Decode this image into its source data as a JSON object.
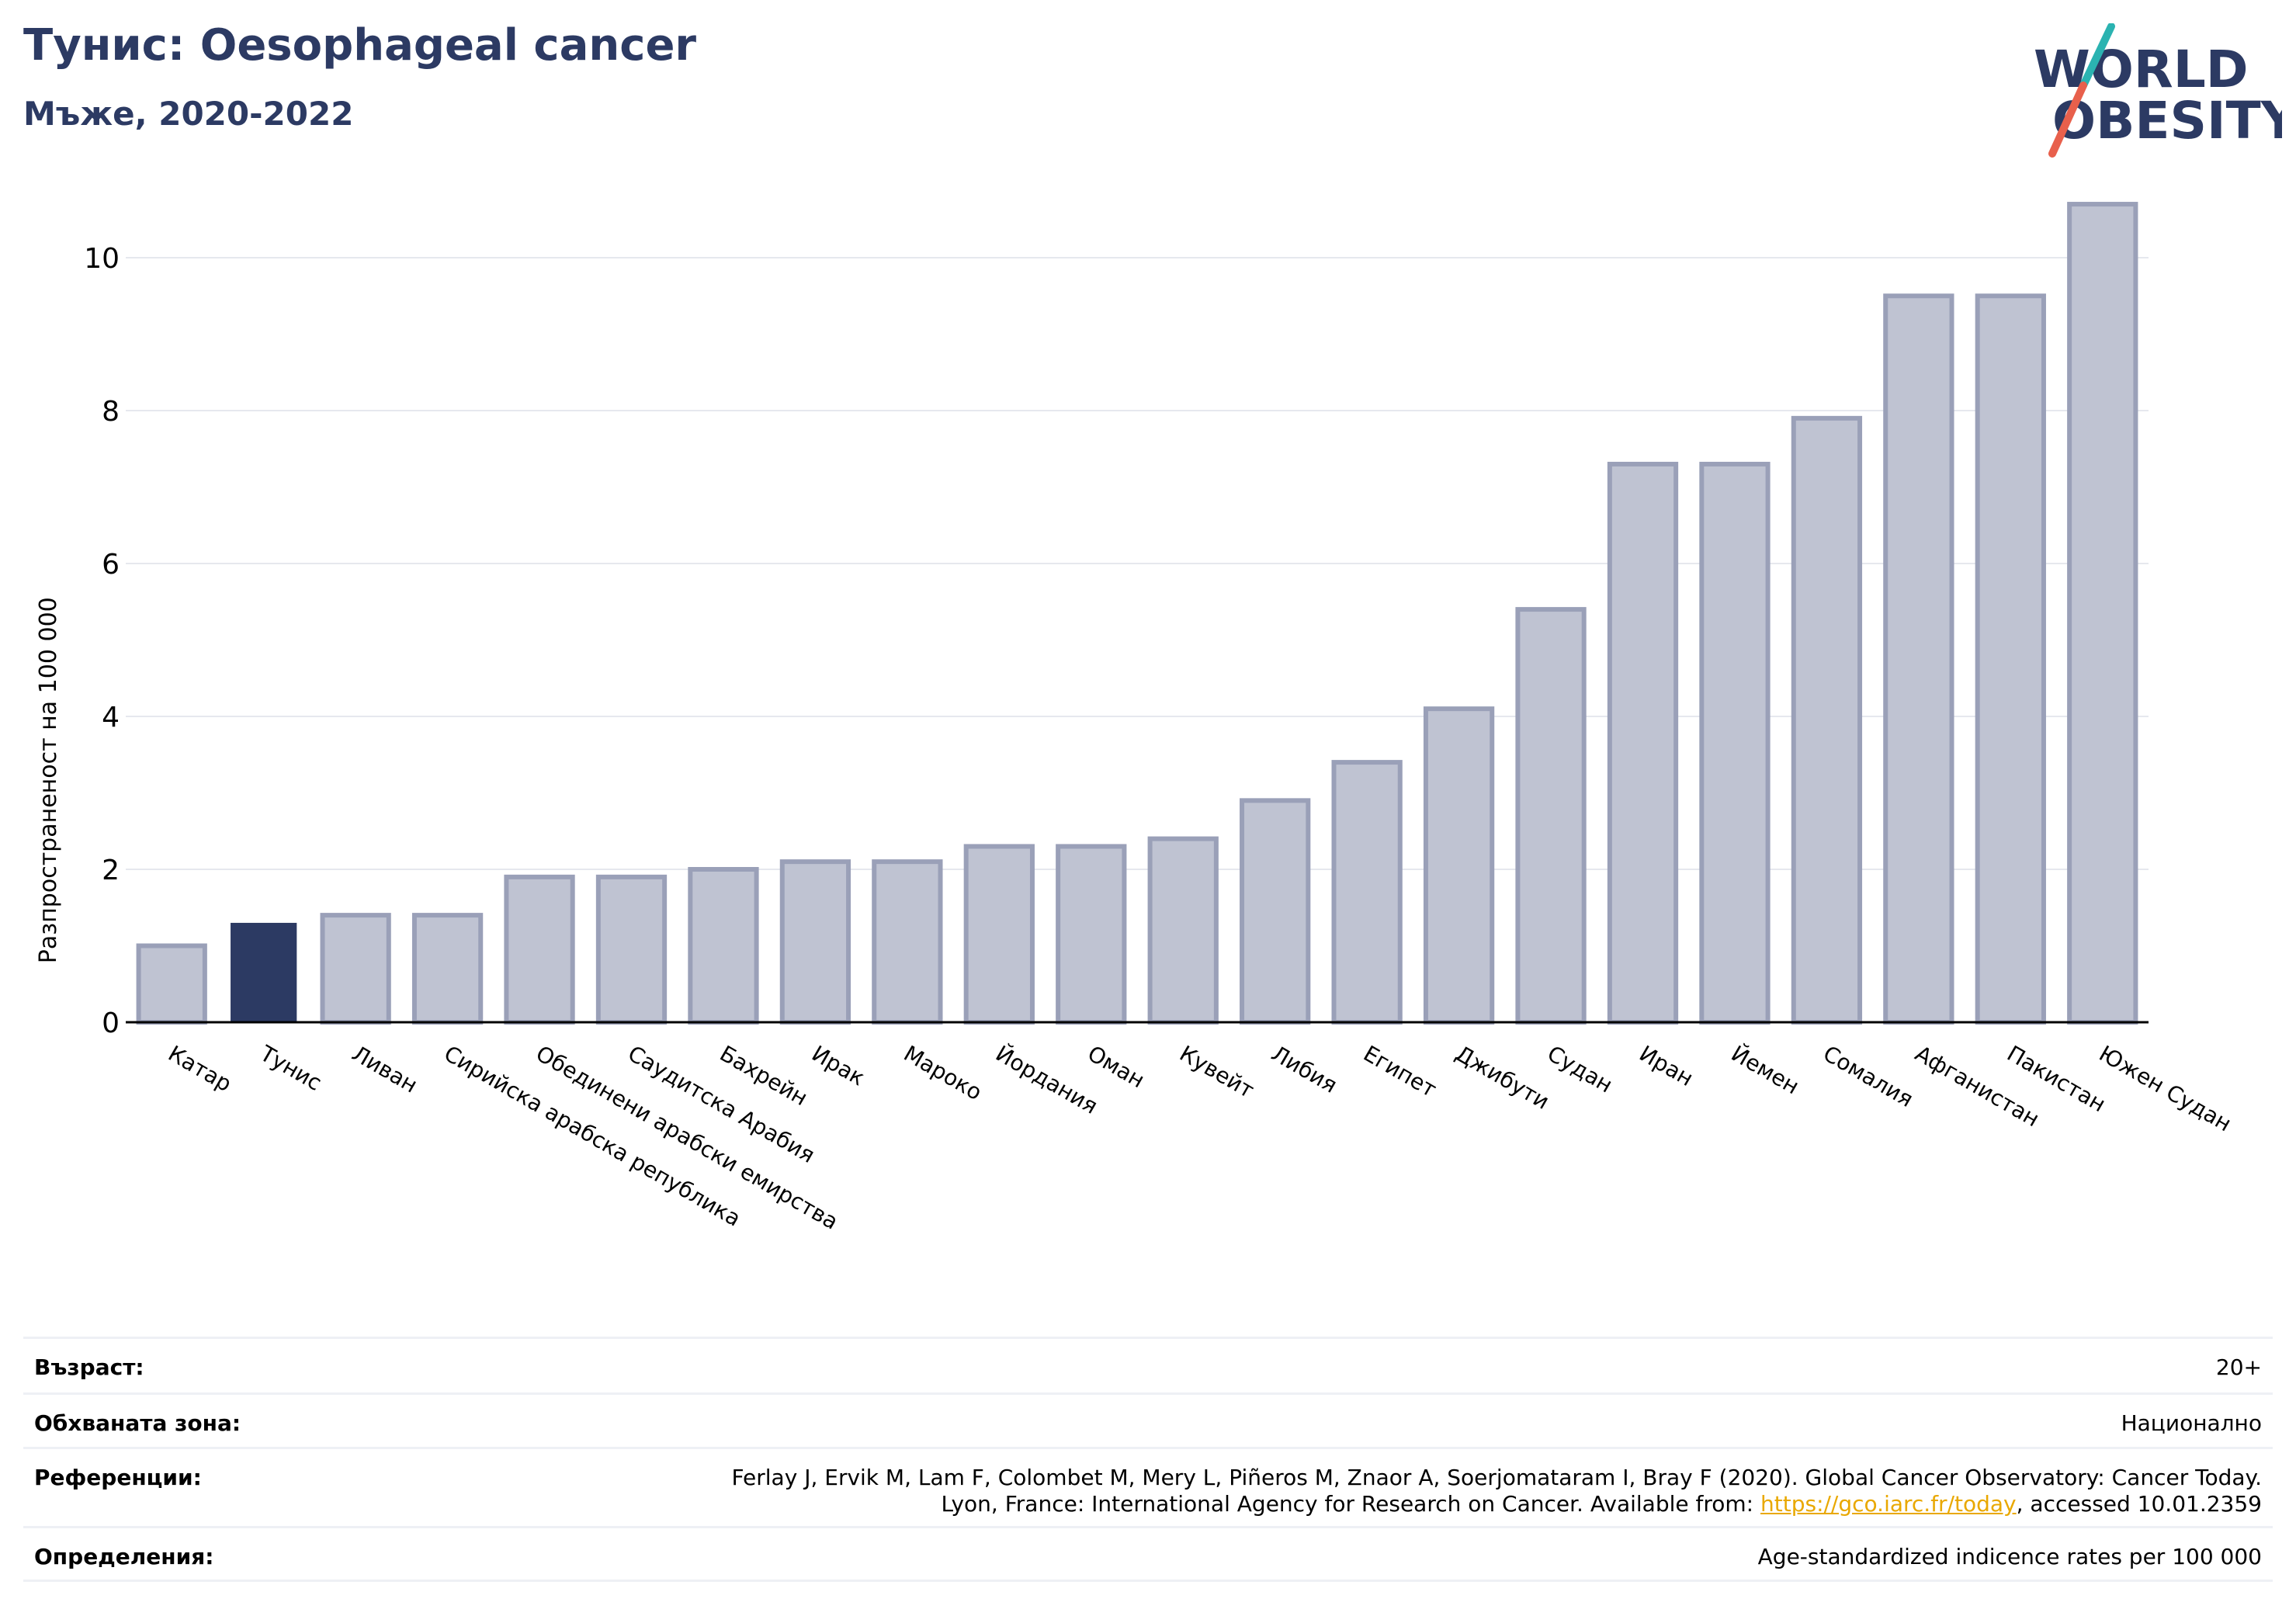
{
  "header": {
    "title": "Тунис: Oesophageal cancer",
    "subtitle": "Мъже, 2020-2022"
  },
  "logo": {
    "line1": "WORLD",
    "line2": "OBESITY",
    "accent_teal": "#2bb3b1",
    "accent_red": "#e8604c",
    "text_color": "#2c3a63"
  },
  "colors": {
    "highlight": "#2c3a63",
    "bar_fill": "#bfc3d2",
    "bar_stroke": "#9aa0b8",
    "grid": "#e6e8ee"
  },
  "chart_data": {
    "type": "bar",
    "ylabel": "Разпространеност  на 100 000",
    "ylim": [
      0,
      11
    ],
    "yticks": [
      0,
      2,
      4,
      6,
      8,
      10
    ],
    "highlight": "Тунис",
    "categories": [
      "Катар",
      "Тунис",
      "Ливан",
      "Сирийска арабска република",
      "Обединени арабски емирства",
      "Саудитска Арабия",
      "Бахрейн",
      "Ирак",
      "Мароко",
      "Йордания",
      "Оман",
      "Кувейт",
      "Либия",
      "Египет",
      "Джибути",
      "Судан",
      "Иран",
      "Йемен",
      "Сомалия",
      "Афганистан",
      "Пакистан",
      "Южен Судан"
    ],
    "values": [
      1.0,
      1.3,
      1.4,
      1.4,
      1.9,
      1.9,
      2.0,
      2.1,
      2.1,
      2.3,
      2.3,
      2.4,
      2.9,
      3.4,
      4.1,
      5.4,
      7.3,
      7.3,
      7.9,
      9.5,
      9.5,
      10.7
    ]
  },
  "info": {
    "age_label": "Възраст:",
    "age_value": "20+",
    "coverage_label": "Обхваната зона:",
    "coverage_value": "Национално",
    "references_label": "Референции:",
    "references_line1": "Ferlay J, Ervik M, Lam F, Colombet M, Mery L, Piñeros M, Znaor A, Soerjomataram I, Bray F (2020). Global Cancer Observatory: Cancer Today.",
    "references_line2_prefix": "Lyon, France: International Agency for Research on Cancer. Available from: ",
    "references_link": "https://gco.iarc.fr/today",
    "references_line2_suffix": ", accessed 10.01.2359",
    "definitions_label": "Определения:",
    "definitions_value": "Age-standardized indicence rates per 100 000"
  }
}
